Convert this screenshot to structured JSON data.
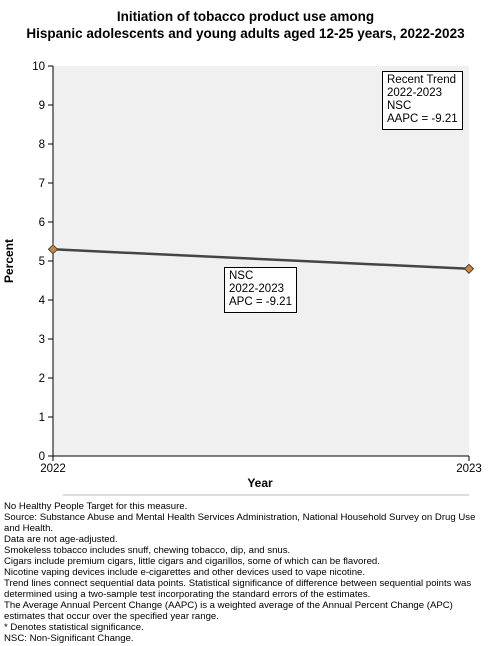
{
  "chart_data": {
    "type": "line",
    "title": [
      "Initiation of tobacco product use among",
      "Hispanic adolescents and young adults aged 12-25 years, 2022-2023"
    ],
    "xlabel": "Year",
    "ylabel": "Percent",
    "categories": [
      "2022",
      "2023"
    ],
    "x": [
      2022,
      2023
    ],
    "series": [
      {
        "values": [
          5.3,
          4.8
        ],
        "color": "#444444",
        "marker_color": "#c8873a"
      }
    ],
    "ylim": [
      0,
      10
    ],
    "yticks": [
      "0",
      "1",
      "2",
      "3",
      "4",
      "5",
      "6",
      "7",
      "8",
      "9",
      "10"
    ],
    "grid": false,
    "plot_background": "#f0f0f0",
    "annotations": [
      {
        "id": "segment",
        "lines": [
          "NSC",
          "2022-2023",
          "APC = -9.21"
        ]
      },
      {
        "id": "trend",
        "lines": [
          "Recent Trend",
          "2022-2023",
          "NSC",
          "AAPC = -9.21"
        ]
      }
    ]
  },
  "notes": [
    "No Healthy People Target for this measure.",
    "Source: Substance Abuse and Mental Health Services Administration, National Household Survey on Drug Use and Health.",
    "Data are not age-adjusted.",
    "Smokeless tobacco includes snuff, chewing tobacco, dip, and snus.",
    "Cigars include premium cigars, little cigars and cigarillos, some of which can be flavored.",
    "Nicotine vaping devices include e-cigarettes and other devices used to vape nicotine.",
    "Trend lines connect sequential data points. Statistical significance of difference between sequential points was determined using a two-sample test incorporating the standard errors of the estimates.",
    "The Average Annual Percent Change (AAPC) is a weighted average of the Annual Percent Change (APC) estimates that occur over the specified year range.",
    "* Denotes statistical significance.",
    "NSC: Non-Significant Change."
  ]
}
